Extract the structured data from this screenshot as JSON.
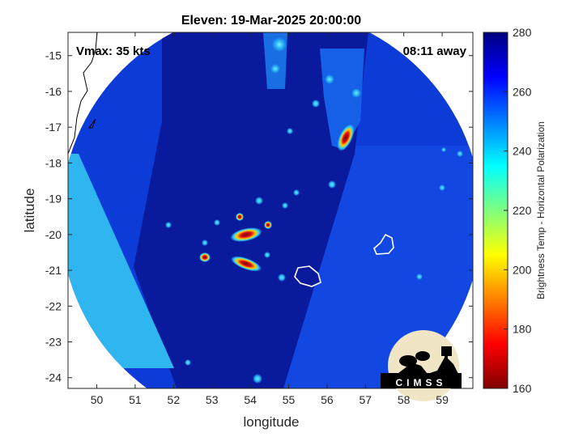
{
  "title": "Eleven: 19-Mar-2025 20:00:00",
  "vmax_label": "Vmax: 35 kts",
  "away_label": "08:11 away",
  "xlabel": "longitude",
  "ylabel": "latitude",
  "x_ticks": [
    "50",
    "51",
    "52",
    "53",
    "54",
    "55",
    "56",
    "57",
    "58",
    "59"
  ],
  "y_ticks": [
    "-15",
    "-16",
    "-17",
    "-18",
    "-19",
    "-20",
    "-21",
    "-22",
    "-23",
    "-24"
  ],
  "colorbar": {
    "label": "Brightness Temp - Horizontal Polarization",
    "ticks": [
      "280",
      "260",
      "240",
      "220",
      "200",
      "180",
      "160"
    ],
    "range": [
      160,
      280
    ]
  },
  "logo_text": "CIMSS",
  "colors": {
    "swath_deep": "#0a1a9c",
    "swath_mid": "#0d3bd8",
    "swath_edge": "#2fb5f0",
    "warm_core": "#b0001a",
    "island_outline": "#ffffff",
    "coast_outline": "#000000"
  },
  "map_extent": {
    "lon": [
      49.25,
      59.8
    ],
    "lat": [
      -24.3,
      -14.35
    ]
  },
  "storm_features": [
    {
      "name": "band-north-east",
      "lon": 56.55,
      "lat": -17.15
    },
    {
      "name": "core-north",
      "lon": 54.0,
      "lat": -20.05
    },
    {
      "name": "core-south",
      "lon": 54.25,
      "lat": -20.85
    },
    {
      "name": "cell-west",
      "lon": 52.95,
      "lat": -20.65
    }
  ],
  "islands": [
    {
      "name": "reunion",
      "lon": 55.55,
      "lat": -21.15
    },
    {
      "name": "mauritius",
      "lon": 57.55,
      "lat": -20.25
    }
  ]
}
